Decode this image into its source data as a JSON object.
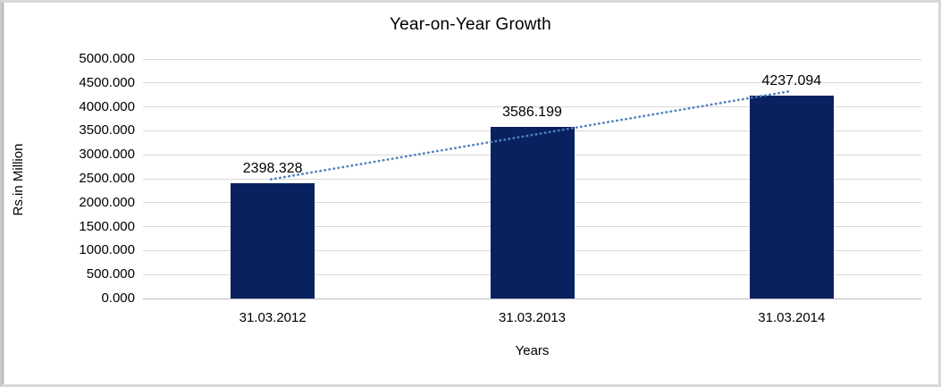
{
  "chart_data": {
    "type": "bar",
    "title": "Year-on-Year Growth",
    "categories": [
      "31.03.2012",
      "31.03.2013",
      "31.03.2014"
    ],
    "values": [
      2398.328,
      3586.199,
      4237.094
    ],
    "data_labels": [
      "2398.328",
      "3586.199",
      "4237.094"
    ],
    "xlabel": "Years",
    "ylabel": "Rs.in Million",
    "ylim": [
      0,
      5000
    ],
    "ytick_step": 500,
    "ytick_decimals": 3,
    "grid": true,
    "legend": "none",
    "trendline": {
      "type": "linear",
      "style": "dotted",
      "color": "#4f81bd"
    },
    "colors": {
      "bar": "#0a2160",
      "gridline": "#d9d9d9",
      "axis_line": "#bcbcbc",
      "text": "#000000",
      "background": "#ffffff",
      "frame_border": "#d8d8d8"
    }
  }
}
